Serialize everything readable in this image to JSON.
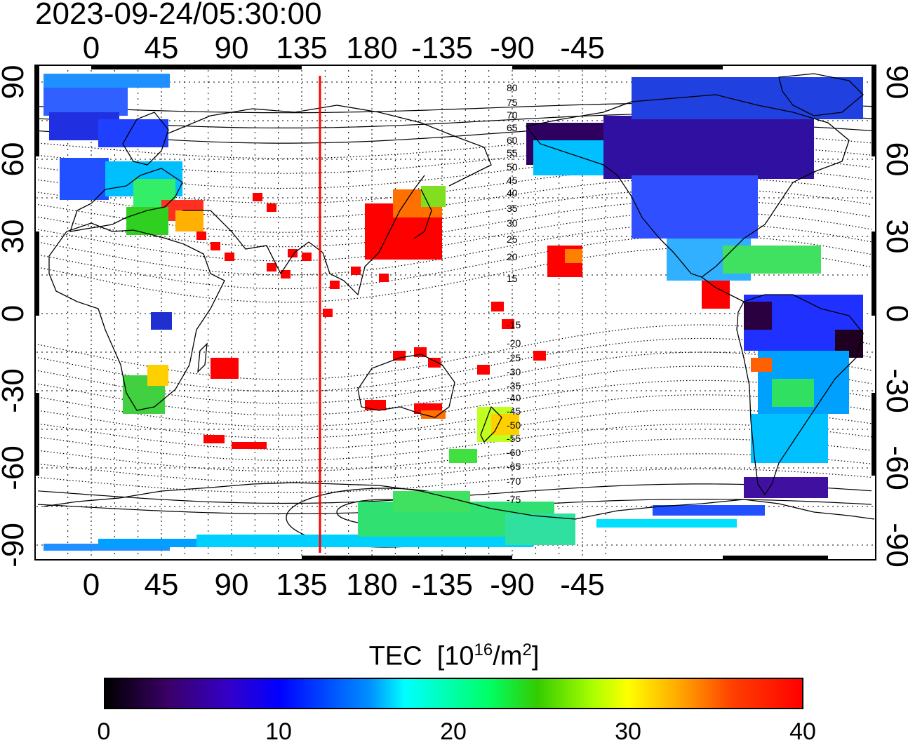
{
  "timestamp": "2023-09-24/05:30:00",
  "axes": {
    "top_lon_labels": [
      "0",
      "45",
      "90",
      "135",
      "180",
      "-135",
      "-90",
      "-45"
    ],
    "bottom_lon_labels": [
      "0",
      "45",
      "90",
      "135",
      "180",
      "-135",
      "-90",
      "-45"
    ],
    "left_lat_labels": [
      "90",
      "60",
      "30",
      "0",
      "-30",
      "-60",
      "-90"
    ],
    "right_lat_labels": [
      "90",
      "60",
      "30",
      "0",
      "-30",
      "-60",
      "-90"
    ]
  },
  "magnetic_latitude_labels": {
    "north": [
      "80",
      "75",
      "70",
      "65",
      "60",
      "55",
      "50",
      "45",
      "40",
      "35",
      "30",
      "25",
      "20",
      "15"
    ],
    "south": [
      "-15",
      "-20",
      "-25",
      "-30",
      "-35",
      "-40",
      "-45",
      "-50",
      "-55",
      "-60",
      "-65",
      "-70",
      "-75"
    ]
  },
  "subsolar_meridian_color": "#ff0000",
  "colorbar": {
    "title": "TEC",
    "unit_base": "[10",
    "unit_exp": "16",
    "unit_mid": "/m",
    "unit_exp2": "2",
    "unit_close": "]",
    "tick_labels": [
      "0",
      "10",
      "20",
      "30",
      "40"
    ],
    "range": [
      0,
      40
    ]
  },
  "colors": {
    "low": "#000000",
    "mid_low": "#0000ff",
    "mid": "#00ffff",
    "mid_high": "#00ff00",
    "high": "#ffff00",
    "max": "#ff0000"
  }
}
